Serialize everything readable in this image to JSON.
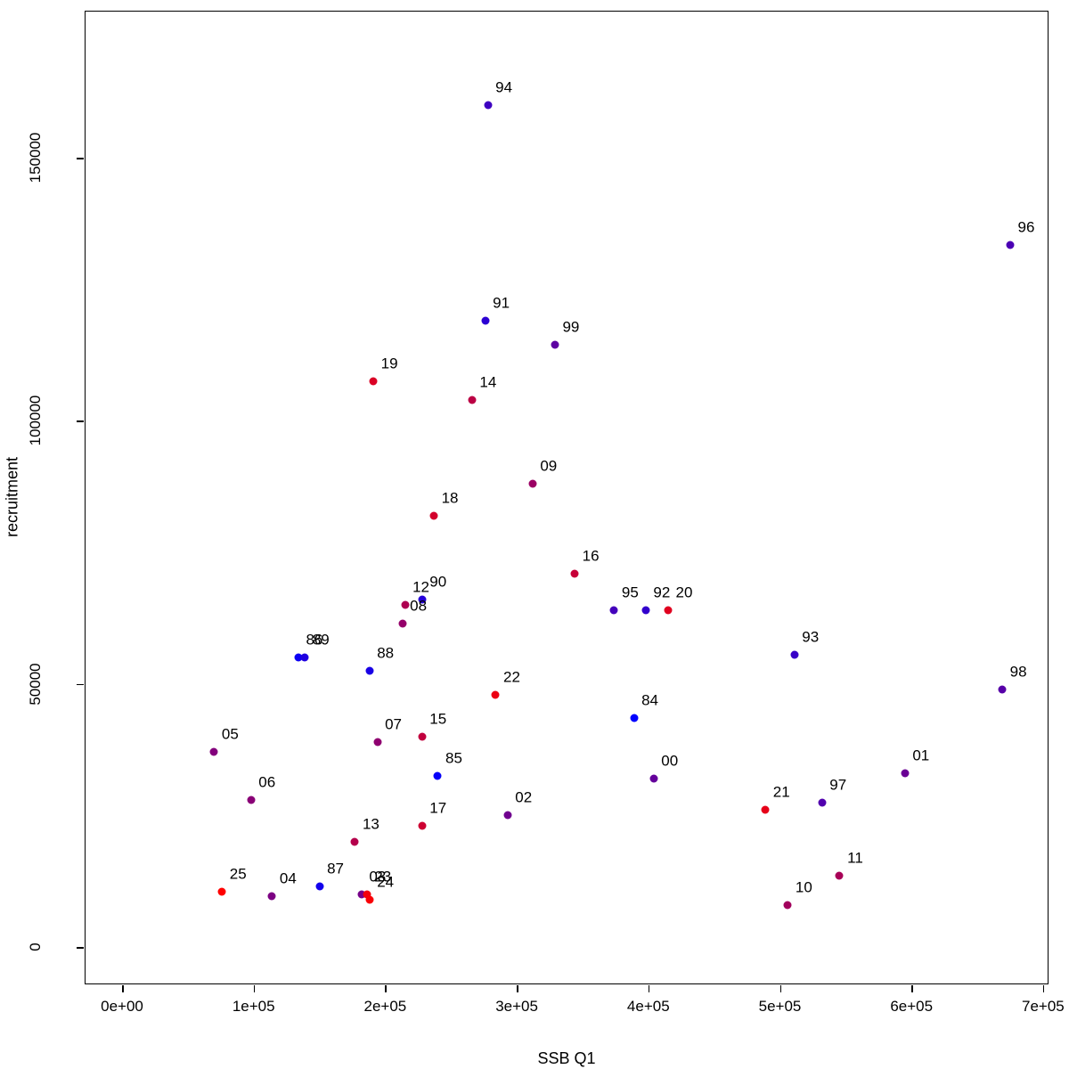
{
  "figure": {
    "background": "#ffffff",
    "box_color": "#000000",
    "text_color": "#000000"
  },
  "chart_data": {
    "type": "scatter",
    "title": "",
    "xlabel": "SSB Q1",
    "ylabel": "recruitment",
    "xlim": [
      0,
      700000
    ],
    "ylim": [
      0,
      160000
    ],
    "grid": false,
    "legend": null,
    "point_style": "filled-circle",
    "label_position": "above-right",
    "color_scale": {
      "meaning": "point color encodes year label, oldest to newest",
      "start_label": "84",
      "start_color": "#0000FF",
      "end_label": "25",
      "end_color": "#FF0000"
    },
    "x_ticks": {
      "values": [
        0,
        100000,
        200000,
        300000,
        400000,
        500000,
        600000,
        700000
      ],
      "labels": [
        "0e+00",
        "1e+05",
        "2e+05",
        "3e+05",
        "4e+05",
        "5e+05",
        "6e+05",
        "7e+05"
      ]
    },
    "y_ticks": {
      "values": [
        0,
        50000,
        100000,
        150000
      ],
      "labels": [
        "0",
        "50000",
        "100000",
        "150000"
      ]
    },
    "points": [
      {
        "label": "84",
        "x": 389000,
        "y": 43500,
        "color": "#0000FF"
      },
      {
        "label": "85",
        "x": 240000,
        "y": 32500,
        "color": "#0600F9"
      },
      {
        "label": "86",
        "x": 134000,
        "y": 55000,
        "color": "#0C00F3"
      },
      {
        "label": "87",
        "x": 150000,
        "y": 11500,
        "color": "#1300EC"
      },
      {
        "label": "88",
        "x": 188000,
        "y": 52500,
        "color": "#1900E6"
      },
      {
        "label": "89",
        "x": 139000,
        "y": 55000,
        "color": "#1F00E0"
      },
      {
        "label": "90",
        "x": 228000,
        "y": 66000,
        "color": "#2500DA"
      },
      {
        "label": "91",
        "x": 276000,
        "y": 119000,
        "color": "#2C00D3"
      },
      {
        "label": "92",
        "x": 398000,
        "y": 64000,
        "color": "#3200CD"
      },
      {
        "label": "93",
        "x": 511000,
        "y": 55500,
        "color": "#3800C7"
      },
      {
        "label": "94",
        "x": 278000,
        "y": 160000,
        "color": "#3E00C1"
      },
      {
        "label": "95",
        "x": 374000,
        "y": 64000,
        "color": "#4400BB"
      },
      {
        "label": "96",
        "x": 675000,
        "y": 133500,
        "color": "#4B00B4"
      },
      {
        "label": "97",
        "x": 532000,
        "y": 27500,
        "color": "#5100AE"
      },
      {
        "label": "98",
        "x": 669000,
        "y": 49000,
        "color": "#5700A8"
      },
      {
        "label": "99",
        "x": 329000,
        "y": 114500,
        "color": "#5D00A2"
      },
      {
        "label": "00",
        "x": 404000,
        "y": 32000,
        "color": "#64009B"
      },
      {
        "label": "01",
        "x": 595000,
        "y": 33000,
        "color": "#6A0095"
      },
      {
        "label": "02",
        "x": 293000,
        "y": 25000,
        "color": "#70008F"
      },
      {
        "label": "03",
        "x": 182000,
        "y": 10000,
        "color": "#760089"
      },
      {
        "label": "04",
        "x": 114000,
        "y": 9700,
        "color": "#7C0083"
      },
      {
        "label": "05",
        "x": 70000,
        "y": 37000,
        "color": "#83007C"
      },
      {
        "label": "06",
        "x": 98000,
        "y": 28000,
        "color": "#890076"
      },
      {
        "label": "07",
        "x": 194000,
        "y": 39000,
        "color": "#8F0070"
      },
      {
        "label": "08",
        "x": 213000,
        "y": 61500,
        "color": "#95006A"
      },
      {
        "label": "09",
        "x": 312000,
        "y": 88000,
        "color": "#9B0064"
      },
      {
        "label": "10",
        "x": 506000,
        "y": 8000,
        "color": "#A2005D"
      },
      {
        "label": "11",
        "x": 545000,
        "y": 13500,
        "color": "#A80057"
      },
      {
        "label": "12",
        "x": 215000,
        "y": 65000,
        "color": "#AE0051"
      },
      {
        "label": "13",
        "x": 177000,
        "y": 20000,
        "color": "#B4004B"
      },
      {
        "label": "14",
        "x": 266000,
        "y": 104000,
        "color": "#BB0044"
      },
      {
        "label": "15",
        "x": 228000,
        "y": 40000,
        "color": "#C1003E"
      },
      {
        "label": "16",
        "x": 344000,
        "y": 71000,
        "color": "#C70038"
      },
      {
        "label": "17",
        "x": 228000,
        "y": 23000,
        "color": "#CD0032"
      },
      {
        "label": "18",
        "x": 237000,
        "y": 82000,
        "color": "#D3002C"
      },
      {
        "label": "19",
        "x": 191000,
        "y": 107500,
        "color": "#DA0025"
      },
      {
        "label": "20",
        "x": 415000,
        "y": 64000,
        "color": "#E0001F"
      },
      {
        "label": "21",
        "x": 489000,
        "y": 26000,
        "color": "#E60019"
      },
      {
        "label": "22",
        "x": 284000,
        "y": 48000,
        "color": "#EC0013"
      },
      {
        "label": "23",
        "x": 186000,
        "y": 10000,
        "color": "#F3000C"
      },
      {
        "label": "24",
        "x": 188000,
        "y": 9000,
        "color": "#F90006"
      },
      {
        "label": "25",
        "x": 76000,
        "y": 10500,
        "color": "#FF0000"
      }
    ]
  }
}
